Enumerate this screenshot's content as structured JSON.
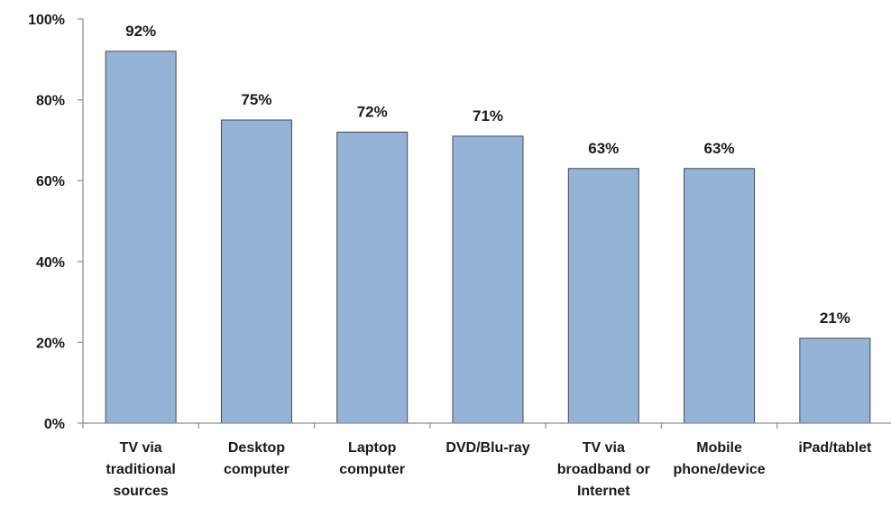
{
  "chart_data": {
    "type": "bar",
    "categories": [
      [
        "TV via",
        "traditional",
        "sources"
      ],
      [
        "Desktop",
        "computer"
      ],
      [
        "Laptop",
        "computer"
      ],
      [
        "DVD/Blu-ray"
      ],
      [
        "TV via",
        "broadband or",
        "Internet"
      ],
      [
        "Mobile",
        "phone/device"
      ],
      [
        "iPad/tablet"
      ]
    ],
    "values": [
      92,
      75,
      72,
      71,
      63,
      63,
      21
    ],
    "data_labels": [
      "92%",
      "75%",
      "72%",
      "71%",
      "63%",
      "63%",
      "21%"
    ],
    "ylim": [
      0,
      100
    ],
    "yticks": [
      0,
      20,
      40,
      60,
      80,
      100
    ],
    "ytick_labels": [
      "0%",
      "20%",
      "40%",
      "60%",
      "80%",
      "100%"
    ],
    "grid": false,
    "legend": "none",
    "bar_color": "#95b3d7",
    "bar_border_color": "#4a4a4a",
    "axis_color": "#8c8c8c"
  }
}
